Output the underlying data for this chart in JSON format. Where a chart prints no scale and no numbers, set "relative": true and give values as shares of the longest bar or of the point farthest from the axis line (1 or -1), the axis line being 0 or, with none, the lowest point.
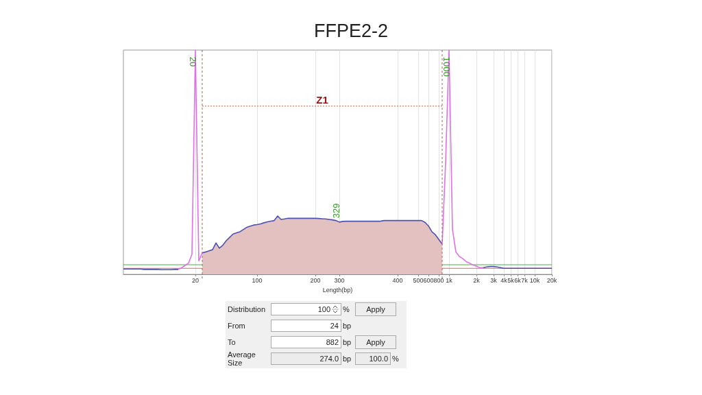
{
  "chart_data": [
    {
      "type": "line",
      "title": "FFPE2-2",
      "xlabel": "Length(bp)",
      "relative": true,
      "grid": "x",
      "categories": [
        null,
        null,
        null,
        null,
        null,
        null,
        null,
        null,
        null,
        null,
        null,
        null,
        null,
        null,
        null,
        null,
        null,
        null,
        null,
        null,
        null,
        "20",
        null,
        null,
        null,
        null,
        null,
        null,
        null,
        null,
        null,
        null,
        null,
        null,
        null,
        null,
        null,
        null,
        null,
        "100",
        null,
        null,
        null,
        null,
        null,
        null,
        null,
        null,
        null,
        null,
        null,
        null,
        null,
        null,
        null,
        null,
        "200",
        null,
        null,
        null,
        null,
        null,
        null,
        "300",
        null,
        null,
        null,
        null,
        null,
        null,
        null,
        null,
        null,
        null,
        null,
        null,
        null,
        null,
        null,
        null,
        "400",
        null,
        null,
        null,
        null,
        null,
        "500",
        null,
        null,
        "600",
        null,
        null,
        "800",
        null,
        null,
        "1k",
        null,
        null,
        null,
        null,
        null,
        null,
        null,
        "2k",
        null,
        null,
        null,
        null,
        "3k",
        null,
        null,
        "4k",
        null,
        "5k",
        null,
        "6k",
        null,
        "7k",
        null,
        null,
        "10k",
        null,
        null,
        null,
        null,
        "20k"
      ],
      "series": [
        {
          "type": "area",
          "color": "#e3c1c1",
          "values": [
            null,
            null,
            null,
            null,
            null,
            null,
            null,
            null,
            null,
            null,
            null,
            null,
            null,
            null,
            null,
            null,
            null,
            null,
            null,
            null,
            null,
            null,
            null,
            0.096,
            0.1,
            0.105,
            0.11,
            0.14,
            0.117,
            0.13,
            0.15,
            0.165,
            0.18,
            0.185,
            0.19,
            0.2,
            0.21,
            0.215,
            0.22,
            0.222,
            0.225,
            0.23,
            0.234,
            0.237,
            0.24,
            0.26,
            0.245,
            0.247,
            0.25,
            0.25,
            0.25,
            0.25,
            0.25,
            0.25,
            0.25,
            0.25,
            0.25,
            0.249,
            0.248,
            0.247,
            0.245,
            0.243,
            0.24,
            0.233,
            0.236,
            0.237,
            0.237,
            0.237,
            0.237,
            0.237,
            0.237,
            0.237,
            0.237,
            0.237,
            0.237,
            0.237,
            0.24,
            0.24,
            0.24,
            0.24,
            0.24,
            0.24,
            0.24,
            0.24,
            0.24,
            0.24,
            0.24,
            0.24,
            0.232,
            0.216,
            0.19,
            0.177,
            0.156,
            0.135,
            null,
            null,
            null,
            null,
            null,
            null,
            null,
            null,
            null,
            null,
            null,
            null,
            null,
            null,
            null,
            null,
            null,
            null,
            null,
            null,
            null,
            null,
            null,
            null,
            null,
            null,
            null,
            null,
            null,
            null,
            null,
            null
          ]
        },
        {
          "type": "line",
          "color": "#4a52b0",
          "values": [
            0.024,
            0.024,
            0.024,
            0.024,
            0.024,
            0.024,
            0.022,
            0.022,
            0.022,
            0.022,
            0.022,
            0.021,
            0.021,
            0.021,
            0.021,
            0.022,
            0.022,
            null,
            null,
            null,
            null,
            null,
            null,
            null,
            null,
            null,
            null,
            null,
            null,
            null,
            null,
            null,
            null,
            null,
            null,
            null,
            null,
            null,
            null,
            null,
            null,
            null,
            null,
            null,
            null,
            null,
            null,
            null,
            null,
            null,
            null,
            null,
            null,
            null,
            null,
            null,
            null,
            null,
            null,
            null,
            null,
            null,
            null,
            null,
            null,
            null,
            null,
            null,
            null,
            null,
            null,
            null,
            null,
            null,
            null,
            null,
            null,
            null,
            null,
            null,
            null,
            null,
            null,
            null,
            null,
            null,
            null,
            null,
            null,
            null,
            null,
            null,
            null,
            null,
            null,
            null,
            null,
            null,
            null,
            null,
            null,
            null,
            null,
            null,
            null,
            0.03,
            0.033,
            0.035,
            0.035,
            0.033,
            0.03,
            0.027,
            0.027,
            0.027,
            0.027,
            0.027,
            0.027,
            0.027,
            0.027,
            0.027,
            0.027,
            0.027,
            0.027,
            0.027,
            0.027,
            0.027
          ]
        },
        {
          "type": "line",
          "color": "#e070e8",
          "values": [
            null,
            null,
            null,
            null,
            null,
            null,
            null,
            null,
            null,
            null,
            null,
            null,
            null,
            null,
            null,
            null,
            0.022,
            0.03,
            0.04,
            0.05,
            0.09,
            1,
            0.06,
            0.096,
            null,
            null,
            null,
            null,
            null,
            null,
            null,
            null,
            null,
            null,
            null,
            null,
            null,
            null,
            null,
            null,
            null,
            null,
            null,
            null,
            null,
            null,
            null,
            null,
            null,
            null,
            null,
            null,
            null,
            null,
            null,
            null,
            null,
            null,
            null,
            null,
            null,
            null,
            null,
            null,
            null,
            null,
            null,
            null,
            null,
            null,
            null,
            null,
            null,
            null,
            null,
            null,
            null,
            null,
            null,
            null,
            null,
            null,
            null,
            null,
            null,
            null,
            null,
            null,
            null,
            null,
            null,
            null,
            null,
            0.135,
            0.5,
            1,
            0.2,
            0.1,
            0.08,
            0.07,
            0.057,
            0.05,
            0.042,
            0.036,
            0.03,
            0.03,
            null,
            null,
            null,
            null,
            null,
            null,
            null,
            null,
            null,
            null,
            null,
            null,
            null,
            null,
            null,
            null,
            null,
            null,
            null,
            null
          ]
        }
      ],
      "ref_lines": [
        {
          "axis": "y",
          "value": 0.043,
          "color": "#4cae4c"
        },
        {
          "axis": "y",
          "value": 0.027,
          "color": "#e86060"
        },
        {
          "axis": "y",
          "value": 0.75,
          "label": "Z1",
          "color": "#b5604a",
          "line_style": "dotted"
        }
      ],
      "annotations": [
        {
          "text": "20",
          "x": "20",
          "y": 0.97
        },
        {
          "text": "1000",
          "x": "1k",
          "y": 0.97
        },
        {
          "text": "329",
          "y": 0.25
        }
      ]
    },
    {
      "type": "other",
      "annotations": [
        "Distribution",
        "100",
        "%",
        "Apply",
        "From",
        "24",
        "bp",
        "To",
        "882",
        "bp",
        "Apply",
        "Average Size",
        "274.0",
        "bp",
        "100.0",
        "%"
      ]
    }
  ]
}
